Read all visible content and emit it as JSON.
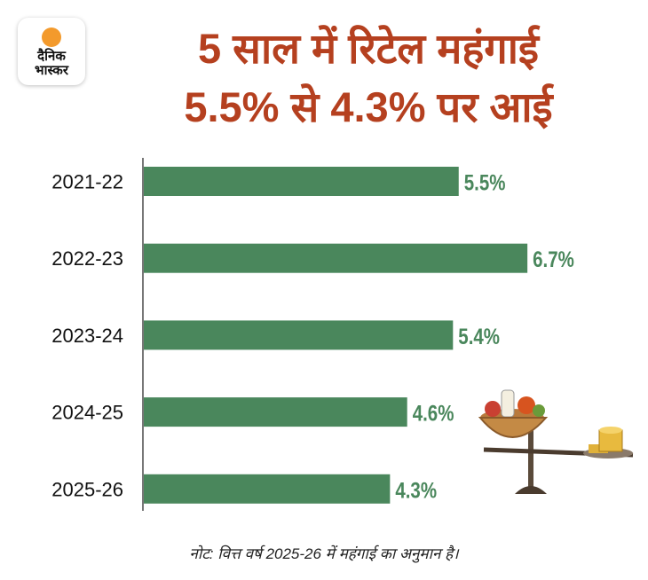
{
  "logo": {
    "line1": "दैनिक",
    "line2": "भास्कर"
  },
  "title": {
    "line1": "5 साल में रिटेल महंगाई",
    "line2": "5.5% से 4.3% पर आई"
  },
  "note": "नोट: वित्त वर्ष 2025-26 में महंगाई का अनुमान है।",
  "colors": {
    "bar": "#4a875c",
    "title": "#b5401f",
    "label": "#4a875c"
  },
  "chart_data": {
    "type": "bar",
    "orientation": "horizontal",
    "categories": [
      "2021-22",
      "2022-23",
      "2023-24",
      "2024-25",
      "2025-26"
    ],
    "values": [
      5.5,
      6.7,
      5.4,
      4.6,
      4.3
    ],
    "value_labels": [
      "5.5%",
      "6.7%",
      "5.4%",
      "4.6%",
      "4.3%"
    ],
    "title": "5 साल में रिटेल महंगाई 5.5% से 4.3% पर आई",
    "xlabel": "",
    "ylabel": "",
    "xlim": [
      0,
      6.7
    ],
    "grid": false,
    "unit": "%"
  }
}
